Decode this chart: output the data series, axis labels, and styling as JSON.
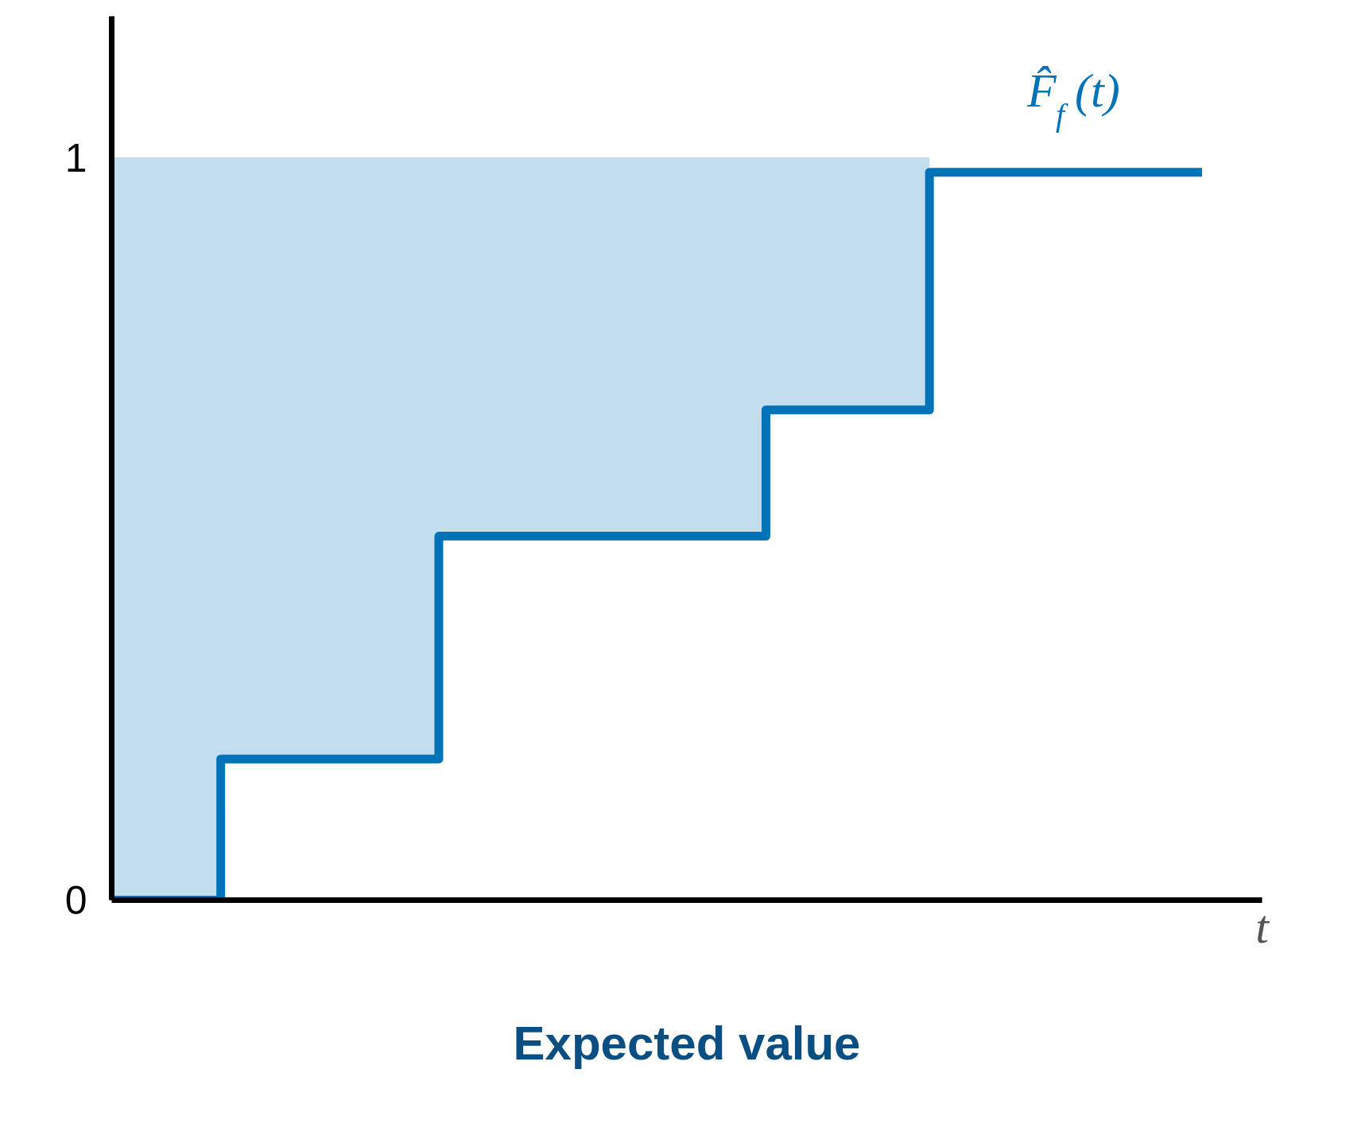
{
  "chart_data": {
    "type": "step",
    "title": "Expected value",
    "xlabel": "t",
    "categories": [
      null,
      null,
      null,
      null,
      null,
      null,
      null,
      null,
      null,
      null,
      null,
      null,
      null,
      null,
      null,
      null,
      null,
      null,
      null,
      null,
      null
    ],
    "series": [
      {
        "name": "F̂$_{f}$(t)",
        "color": "#0072b8",
        "values": [
          0,
          0,
          0.19,
          0.19,
          0.19,
          0.19,
          0.49,
          0.49,
          0.49,
          0.49,
          0.49,
          0.49,
          0.66,
          0.66,
          0.66,
          0.98,
          0.98,
          0.98,
          0.98,
          0.98,
          0.98
        ],
        "lower": [
          0,
          0,
          0.19,
          0.19,
          0.19,
          0.19,
          0.49,
          0.49,
          0.49,
          0.49,
          0.49,
          0.49,
          0.66,
          0.66,
          0.66,
          0.98,
          null,
          null,
          null,
          null,
          null
        ],
        "upper": [
          1,
          1,
          1,
          1,
          1,
          1,
          1,
          1,
          1,
          1,
          1,
          1,
          1,
          1,
          1,
          1,
          null,
          null,
          null,
          null,
          null
        ]
      }
    ],
    "ylim": [
      0,
      1.19
    ],
    "yticks": [
      0,
      1
    ],
    "tick_labels": "y",
    "grid": false
  }
}
